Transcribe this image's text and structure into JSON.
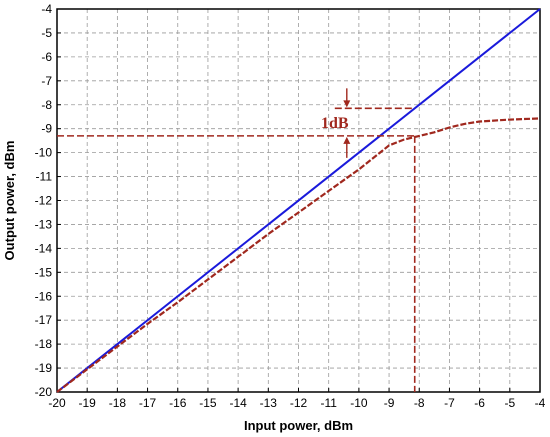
{
  "chart_data": {
    "type": "line",
    "xlabel": "Input power, dBm",
    "ylabel": "Output power, dBm",
    "xlim": [
      -20,
      -4
    ],
    "ylim": [
      -20,
      -4
    ],
    "x_ticks": [
      "-20",
      "-19",
      "-18",
      "-17",
      "-16",
      "-15",
      "-14",
      "-13",
      "-12",
      "-11",
      "-10",
      "-9",
      "-8",
      "-7",
      "-6",
      "-5",
      "-4"
    ],
    "y_ticks": [
      "-20",
      "-19",
      "-18",
      "-17",
      "-16",
      "-15",
      "-14",
      "-13",
      "-12",
      "-11",
      "-10",
      "-9",
      "-8",
      "-7",
      "-6",
      "-5",
      "-4"
    ],
    "grid": true,
    "colors": {
      "linear": "#1a1adb",
      "compressed": "#a0281e",
      "marker": "#a0281e"
    },
    "series": [
      {
        "style": "solid",
        "x": [
          -20,
          -4
        ],
        "y": [
          -20,
          -4
        ]
      },
      {
        "style": "dashed",
        "x": [
          -20,
          -19,
          -18,
          -17,
          -16,
          -15,
          -14,
          -13,
          -12,
          -11,
          -10,
          -9.5,
          -9,
          -8.5,
          -8,
          -7.5,
          -7,
          -6.5,
          -6,
          -5,
          -4
        ],
        "y": [
          -20,
          -19.05,
          -18.1,
          -17.15,
          -16.25,
          -15.3,
          -14.35,
          -13.4,
          -12.5,
          -11.6,
          -10.7,
          -10.2,
          -9.7,
          -9.45,
          -9.3,
          -9.15,
          -8.95,
          -8.8,
          -8.7,
          -8.62,
          -8.57
        ]
      }
    ],
    "annotations": {
      "compression_label": "1dB",
      "p1db_input": -8.15,
      "output_linear": -8.15,
      "output_compressed": -9.3,
      "label_x": -10.4
    }
  }
}
